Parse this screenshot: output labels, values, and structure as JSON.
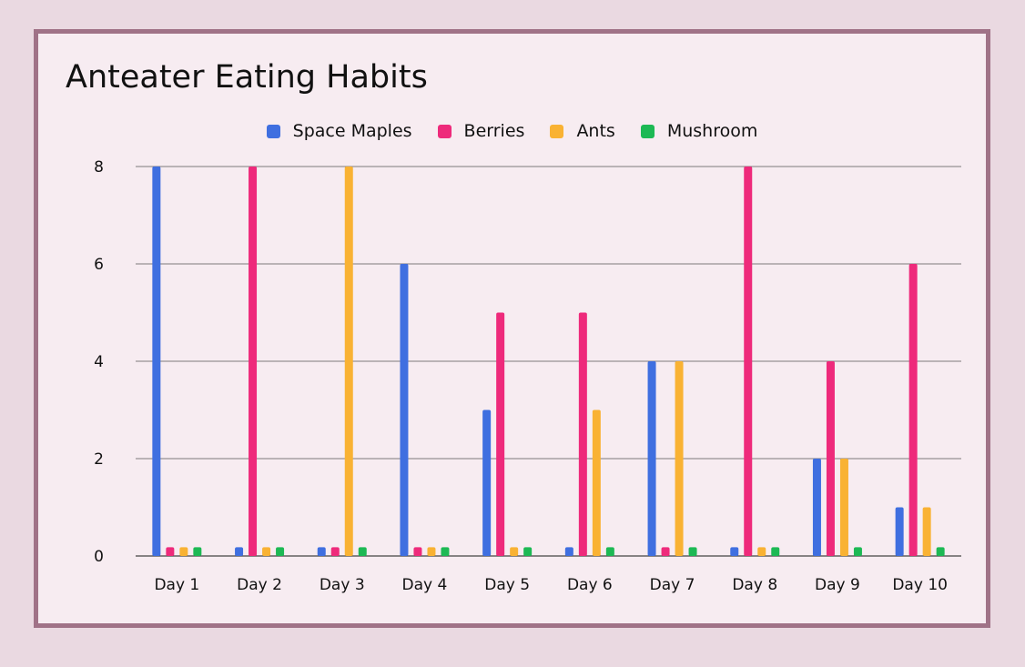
{
  "chart_data": {
    "type": "bar",
    "title": "Anteater Eating Habits",
    "xlabel": "",
    "ylabel": "",
    "categories": [
      "Day 1",
      "Day 2",
      "Day 3",
      "Day 4",
      "Day 5",
      "Day 6",
      "Day 7",
      "Day 8",
      "Day 9",
      "Day 10"
    ],
    "series": [
      {
        "name": "Space Maples",
        "color": "#3f6fe0",
        "values": [
          8,
          0,
          0,
          6,
          3,
          0,
          4,
          0,
          2,
          1
        ]
      },
      {
        "name": "Berries",
        "color": "#ee2a7b",
        "values": [
          0,
          8,
          0,
          0,
          5,
          5,
          0,
          8,
          4,
          6
        ]
      },
      {
        "name": "Ants",
        "color": "#f9b233",
        "values": [
          0,
          0,
          8,
          0,
          0,
          3,
          4,
          0,
          2,
          1
        ]
      },
      {
        "name": "Mushroom",
        "color": "#1db954",
        "values": [
          0,
          0,
          0,
          0,
          0,
          0,
          0,
          0,
          0,
          0
        ]
      }
    ],
    "ylim": [
      0,
      8
    ],
    "yticks": [
      0,
      2,
      4,
      6,
      8
    ],
    "grid": true,
    "legend_position": "top-center"
  }
}
